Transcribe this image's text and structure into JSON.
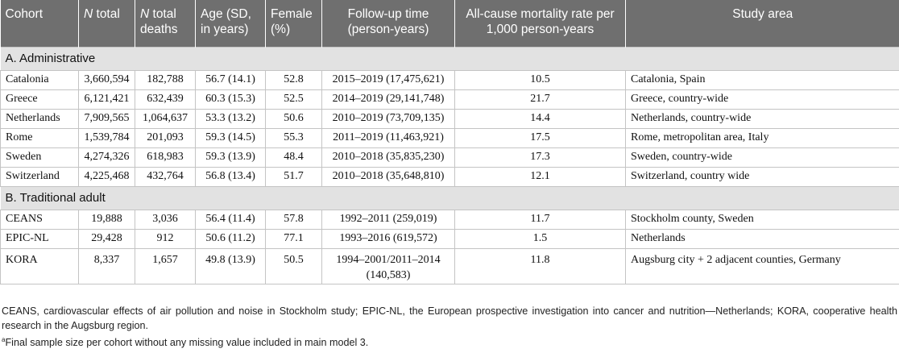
{
  "headers": [
    {
      "pre": "",
      "em": "",
      "post": "Cohort"
    },
    {
      "pre": "",
      "em": "N",
      "post": " total"
    },
    {
      "pre": "",
      "em": "N",
      "post": " total deaths"
    },
    {
      "pre": "",
      "em": "",
      "post": "Age (SD, in years)"
    },
    {
      "pre": "",
      "em": "",
      "post": "Female (%)"
    },
    {
      "pre": "",
      "em": "",
      "post": "Follow-up time (person-years)"
    },
    {
      "pre": "",
      "em": "",
      "post": "All-cause mortality rate per 1,000 person-years"
    },
    {
      "pre": "",
      "em": "",
      "post": "Study area"
    }
  ],
  "sections": [
    {
      "label": "A. Administrative",
      "rows": [
        [
          "Catalonia",
          "3,660,594",
          "182,788",
          "56.7 (14.1)",
          "52.8",
          "2015–2019 (17,475,621)",
          "10.5",
          "Catalonia, Spain"
        ],
        [
          "Greece",
          "6,121,421",
          "632,439",
          "60.3 (15.3)",
          "52.5",
          "2014–2019 (29,141,748)",
          "21.7",
          "Greece, country-wide"
        ],
        [
          "Netherlands",
          "7,909,565",
          "1,064,637",
          "53.3 (13.2)",
          "50.6",
          "2010–2019 (73,709,135)",
          "14.4",
          "Netherlands, country-wide"
        ],
        [
          "Rome",
          "1,539,784",
          "201,093",
          "59.3 (14.5)",
          "55.3",
          "2011–2019 (11,463,921)",
          "17.5",
          "Rome, metropolitan area, Italy"
        ],
        [
          "Sweden",
          "4,274,326",
          "618,983",
          "59.3 (13.9)",
          "48.4",
          "2010–2018 (35,835,230)",
          "17.3",
          "Sweden, country-wide"
        ],
        [
          "Switzerland",
          "4,225,468",
          "432,764",
          "56.8 (13.4)",
          "51.7",
          "2010–2018 (35,648,810)",
          "12.1",
          "Switzerland, country wide"
        ]
      ]
    },
    {
      "label": "B. Traditional adult",
      "rows": [
        [
          "CEANS",
          "19,888",
          "3,036",
          "56.4 (11.4)",
          "57.8",
          "1992–2011 (259,019)",
          "11.7",
          "Stockholm county, Sweden"
        ],
        [
          "EPIC-NL",
          "29,428",
          "912",
          "50.6 (11.2)",
          "77.1",
          "1993–2016 (619,572)",
          "1.5",
          "Netherlands"
        ],
        [
          "KORA",
          "8,337",
          "1,657",
          "49.8 (13.9)",
          "50.5",
          "1994–2001/2011–2014 (140,583)",
          "11.8",
          "Augsburg city + 2 adjacent counties, Germany"
        ]
      ]
    }
  ],
  "notes": {
    "abbrev": "CEANS, cardiovascular effects of air pollution and noise in Stockholm study; EPIC-NL, the European prospective investigation into cancer and nutrition—Netherlands; KORA, cooperative health research in the Augsburg region.",
    "footnote_mark": "a",
    "footnote": "Final sample size per cohort without any missing value included in main model 3."
  }
}
